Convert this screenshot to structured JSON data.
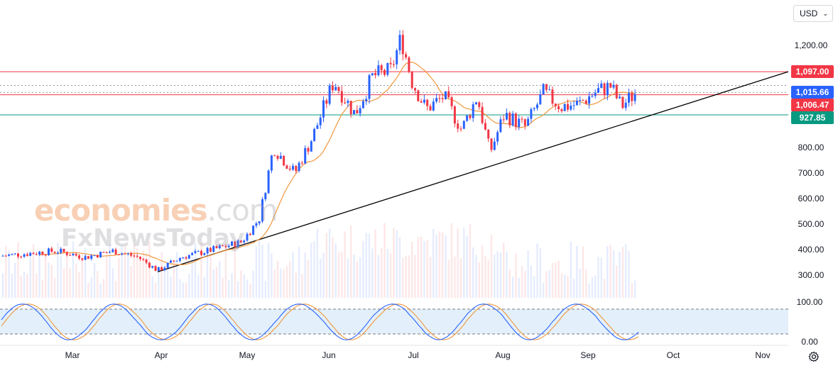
{
  "currency": {
    "label": "USD"
  },
  "watermark": {
    "line1_main": "economies",
    "line1_suffix": ".com",
    "line2": "FxNewsToday"
  },
  "icons": {
    "settings": "gear-icon",
    "dropdown": "chevron-down-icon"
  },
  "colors": {
    "up": "#2962ff",
    "down": "#f23645",
    "ma": "#f0973d",
    "trendline": "#000000",
    "resistance": "#f23645",
    "support": "#089981",
    "osc_fast": "#2962ff",
    "osc_slow": "#f0973d",
    "osc_band": "#e3f0fb"
  },
  "chart_data": {
    "type": "candlestick",
    "x_ticks": [
      "Mar",
      "Apr",
      "May",
      "Jun",
      "Jul",
      "Aug",
      "Sep",
      "Oct",
      "Nov"
    ],
    "y_ticks": [
      "1,200.00",
      "800.00",
      "700.00",
      "600.00",
      "500.00",
      "400.00",
      "300.00"
    ],
    "y_ticks_values": [
      1200,
      800,
      700,
      600,
      500,
      400,
      300
    ],
    "ylim": [
      250,
      1300
    ],
    "price_tags": [
      {
        "label": "1,097.00",
        "value": 1097,
        "color": "#f23645"
      },
      {
        "label": "1,015.66",
        "value": 1015.66,
        "color": "#2962ff"
      },
      {
        "label": "1,006.47",
        "value": 1006.47,
        "color": "#f23645"
      },
      {
        "label": "927.85",
        "value": 927.85,
        "color": "#089981"
      }
    ],
    "horizontal_lines": [
      {
        "value": 1097,
        "style": "solid",
        "color": "#f23645"
      },
      {
        "value": 1006.47,
        "style": "solid",
        "color": "#f23645"
      },
      {
        "value": 927.85,
        "style": "solid",
        "color": "#089981"
      },
      {
        "value": 1015.66,
        "style": "dotted",
        "color": "#9598a1"
      },
      {
        "value": 1043,
        "style": "dotted",
        "color": "#9598a1"
      }
    ],
    "trendline": {
      "start": {
        "x": "Apr",
        "y": 313
      },
      "end_at_right_edge": 1097
    },
    "price_series_monthly": [
      {
        "month": "Mar",
        "close": 385
      },
      {
        "month": "Apr",
        "close": 330
      },
      {
        "month": "May",
        "close": 780
      },
      {
        "month": "Jun",
        "close": 1060
      },
      {
        "month": "Jul",
        "close": 1050
      },
      {
        "month": "Aug",
        "close": 870
      },
      {
        "month": "Sep",
        "close": 1010
      }
    ],
    "last_close": 1015.66,
    "moving_average": {
      "color": "#f0973d",
      "last_value": 980
    },
    "volume": {
      "present": true
    },
    "oscillator": {
      "type": "stochastic",
      "y_ticks": [
        "100.00",
        "0.00"
      ],
      "upper_band": 80,
      "lower_band": 20,
      "last_value": 75
    }
  }
}
